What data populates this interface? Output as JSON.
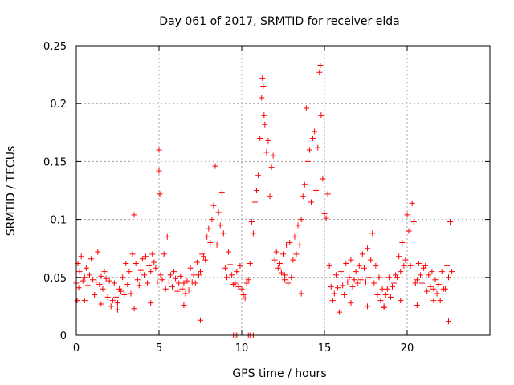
{
  "chart_data": {
    "type": "scatter",
    "title": "Day 061 of 2017, SRMTID for receiver elda",
    "xlabel": "GPS time / hours",
    "ylabel": "SRMTID / TECUs",
    "xlim": [
      0,
      25
    ],
    "ylim": [
      0,
      0.25
    ],
    "x_ticks": [
      0,
      5,
      10,
      15,
      20
    ],
    "x_tick_labels": [
      "0",
      "5",
      "10",
      "15",
      "20"
    ],
    "y_ticks": [
      0,
      0.05,
      0.1,
      0.15,
      0.2,
      0.25
    ],
    "y_tick_labels": [
      "0",
      "0.05",
      "0.1",
      "0.15",
      "0.2",
      "0.25"
    ],
    "grid": true,
    "marker": "+",
    "color": "#ff0000",
    "series": [
      {
        "name": "SRMTID",
        "x": [
          0.0,
          0.05,
          0.1,
          0.15,
          0.2,
          0.3,
          0.4,
          0.5,
          0.6,
          0.7,
          0.8,
          0.9,
          1.0,
          1.1,
          1.2,
          1.3,
          1.4,
          1.5,
          1.6,
          1.7,
          1.8,
          1.9,
          2.0,
          2.1,
          2.2,
          2.3,
          2.4,
          2.5,
          2.6,
          2.7,
          2.8,
          2.9,
          3.0,
          3.1,
          3.2,
          3.3,
          3.4,
          3.5,
          3.6,
          3.7,
          3.8,
          3.9,
          4.0,
          4.1,
          4.2,
          4.3,
          4.4,
          4.5,
          4.6,
          4.7,
          4.8,
          4.9,
          5.0,
          5.0,
          5.05,
          5.1,
          5.2,
          5.3,
          5.4,
          5.5,
          5.6,
          5.7,
          5.8,
          5.9,
          6.0,
          6.1,
          6.2,
          6.3,
          6.4,
          6.5,
          6.6,
          6.7,
          6.8,
          6.9,
          7.0,
          7.1,
          7.2,
          7.3,
          7.4,
          7.5,
          7.6,
          7.7,
          7.8,
          7.9,
          8.0,
          8.1,
          8.2,
          8.3,
          8.4,
          8.5,
          8.6,
          8.7,
          8.8,
          8.9,
          9.0,
          9.1,
          9.2,
          9.3,
          9.4,
          9.5,
          9.6,
          9.7,
          9.8,
          9.9,
          10.0,
          10.1,
          10.2,
          10.3,
          10.4,
          10.5,
          10.6,
          10.7,
          10.8,
          10.9,
          11.0,
          11.1,
          11.2,
          11.25,
          11.3,
          11.35,
          11.4,
          11.5,
          11.6,
          11.7,
          11.8,
          11.9,
          12.0,
          12.1,
          12.2,
          12.3,
          12.4,
          12.5,
          12.6,
          12.7,
          12.8,
          12.9,
          13.0,
          13.1,
          13.2,
          13.3,
          13.4,
          13.5,
          13.6,
          13.7,
          13.8,
          13.9,
          14.0,
          14.1,
          14.2,
          14.3,
          14.4,
          14.5,
          14.6,
          14.7,
          14.75,
          14.8,
          14.9,
          15.0,
          15.1,
          15.2,
          15.3,
          15.4,
          15.5,
          15.6,
          15.7,
          15.8,
          15.9,
          16.0,
          16.1,
          16.2,
          16.3,
          16.4,
          16.5,
          16.6,
          16.7,
          16.8,
          16.9,
          17.0,
          17.1,
          17.2,
          17.3,
          17.4,
          17.5,
          17.6,
          17.7,
          17.8,
          17.9,
          18.0,
          18.1,
          18.2,
          18.3,
          18.4,
          18.5,
          18.6,
          18.7,
          18.8,
          18.9,
          19.0,
          19.1,
          19.2,
          19.3,
          19.4,
          19.5,
          19.6,
          19.7,
          19.8,
          19.9,
          20.0,
          20.1,
          20.2,
          20.3,
          20.4,
          20.5,
          20.6,
          20.7,
          20.8,
          20.9,
          21.0,
          21.1,
          21.2,
          21.3,
          21.4,
          21.5,
          21.6,
          21.7,
          21.8,
          21.9,
          22.0,
          22.1,
          22.2,
          22.3,
          22.4,
          22.5,
          22.6,
          22.7,
          9.3,
          9.5,
          9.6,
          9.7,
          10.4,
          10.5,
          10.7,
          0.5,
          1.5,
          2.5,
          3.5,
          4.5,
          6.5,
          7.5,
          12.6,
          13.6,
          16.6,
          17.6,
          18.6,
          19.6,
          20.6,
          21.6,
          22.5
        ],
        "y": [
          0.045,
          0.03,
          0.062,
          0.041,
          0.055,
          0.068,
          0.047,
          0.05,
          0.058,
          0.043,
          0.052,
          0.066,
          0.048,
          0.035,
          0.046,
          0.072,
          0.044,
          0.051,
          0.04,
          0.055,
          0.049,
          0.033,
          0.047,
          0.025,
          0.03,
          0.045,
          0.033,
          0.028,
          0.04,
          0.038,
          0.05,
          0.035,
          0.062,
          0.044,
          0.055,
          0.036,
          0.07,
          0.104,
          0.062,
          0.048,
          0.043,
          0.056,
          0.066,
          0.052,
          0.068,
          0.045,
          0.06,
          0.055,
          0.07,
          0.063,
          0.058,
          0.046,
          0.16,
          0.142,
          0.122,
          0.052,
          0.048,
          0.07,
          0.04,
          0.085,
          0.046,
          0.052,
          0.042,
          0.055,
          0.049,
          0.038,
          0.045,
          0.051,
          0.04,
          0.045,
          0.036,
          0.047,
          0.039,
          0.058,
          0.046,
          0.052,
          0.045,
          0.063,
          0.052,
          0.055,
          0.07,
          0.068,
          0.065,
          0.085,
          0.092,
          0.08,
          0.1,
          0.112,
          0.146,
          0.078,
          0.106,
          0.095,
          0.123,
          0.088,
          0.058,
          0.05,
          0.072,
          0.061,
          0.052,
          0.044,
          0.045,
          0.055,
          0.042,
          0.06,
          0.04,
          0.035,
          0.032,
          0.045,
          0.048,
          0.062,
          0.098,
          0.088,
          0.115,
          0.125,
          0.138,
          0.17,
          0.205,
          0.222,
          0.215,
          0.19,
          0.182,
          0.158,
          0.168,
          0.12,
          0.145,
          0.155,
          0.065,
          0.072,
          0.058,
          0.062,
          0.054,
          0.07,
          0.048,
          0.078,
          0.045,
          0.08,
          0.05,
          0.065,
          0.085,
          0.07,
          0.095,
          0.078,
          0.1,
          0.12,
          0.13,
          0.196,
          0.15,
          0.16,
          0.115,
          0.17,
          0.176,
          0.125,
          0.162,
          0.227,
          0.233,
          0.19,
          0.135,
          0.105,
          0.101,
          0.122,
          0.06,
          0.042,
          0.03,
          0.036,
          0.052,
          0.041,
          0.02,
          0.055,
          0.043,
          0.035,
          0.062,
          0.046,
          0.05,
          0.065,
          0.042,
          0.048,
          0.055,
          0.045,
          0.06,
          0.048,
          0.07,
          0.058,
          0.046,
          0.075,
          0.05,
          0.065,
          0.088,
          0.045,
          0.06,
          0.035,
          0.05,
          0.03,
          0.04,
          0.025,
          0.035,
          0.04,
          0.05,
          0.033,
          0.042,
          0.045,
          0.052,
          0.05,
          0.068,
          0.055,
          0.08,
          0.06,
          0.065,
          0.104,
          0.09,
          0.06,
          0.114,
          0.098,
          0.045,
          0.048,
          0.062,
          0.052,
          0.045,
          0.058,
          0.06,
          0.038,
          0.052,
          0.042,
          0.055,
          0.04,
          0.048,
          0.036,
          0.044,
          0.03,
          0.055,
          0.04,
          0.04,
          0.06,
          0.05,
          0.098,
          0.055,
          0.0,
          0.0,
          0.0,
          0.0,
          0.0,
          0.0,
          0.0,
          0.03,
          0.027,
          0.022,
          0.023,
          0.028,
          0.026,
          0.013,
          0.052,
          0.036,
          0.028,
          0.025,
          0.024,
          0.03,
          0.026,
          0.03,
          0.012
        ]
      }
    ]
  }
}
